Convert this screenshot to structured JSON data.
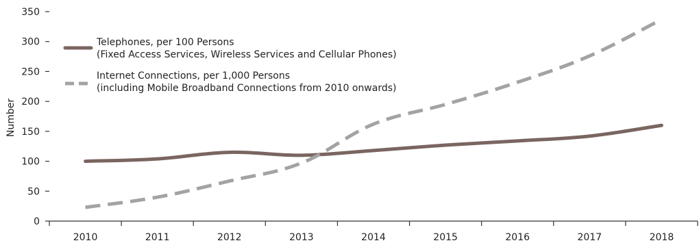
{
  "chart_data": {
    "type": "line",
    "x": [
      "2010",
      "2011",
      "2012",
      "2013",
      "2014",
      "2015",
      "2016",
      "2017",
      "2018"
    ],
    "ylabel": "Number",
    "xlabel": "",
    "title": "",
    "ylim": [
      0,
      350
    ],
    "yticks": [
      "0",
      "50",
      "100",
      "150",
      "200",
      "250",
      "300",
      "350"
    ],
    "grid": false,
    "legend_position": "top-left",
    "series": [
      {
        "name": "Telephones, per 100 Persons",
        "name_line2": "(Fixed Access Services, Wireless Services and Cellular Phones)",
        "values": [
          100,
          104,
          115,
          110,
          118,
          127,
          134,
          142,
          160
        ],
        "color": "#7a6560",
        "style": "solid"
      },
      {
        "name": "Internet Connections, per 1,000 Persons",
        "name_line2": "(including Mobile Broadband Connections from 2010 onwards)",
        "values": [
          23,
          40,
          67,
          97,
          162,
          195,
          232,
          276,
          337
        ],
        "color": "#a3a3a3",
        "style": "dashed"
      }
    ]
  }
}
